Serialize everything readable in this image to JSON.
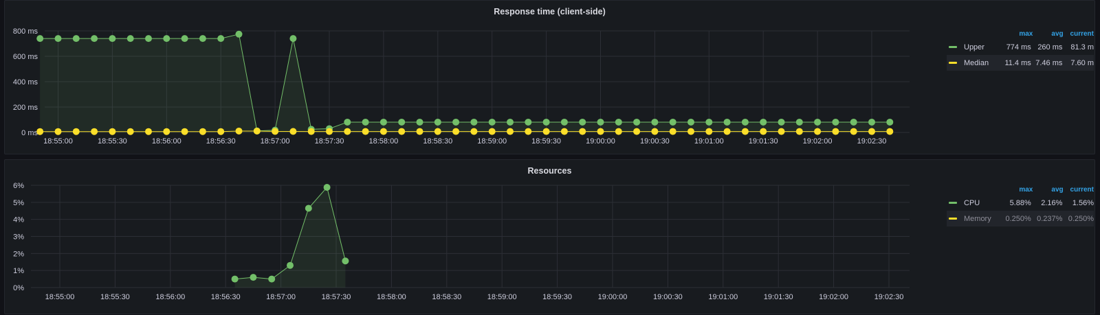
{
  "colors": {
    "green": "#73bf69",
    "yellow": "#fade2a",
    "grid": "#2c2f36",
    "legend_header": "#33a2e5"
  },
  "legend_headers": {
    "max": "max",
    "avg": "avg",
    "current": "current"
  },
  "panels": [
    {
      "title": "Response time (client-side)",
      "legend": [
        {
          "name": "Upper",
          "color": "#73bf69",
          "max": "774 ms",
          "avg": "260 ms",
          "current": "81.3 m"
        },
        {
          "name": "Median",
          "color": "#fade2a",
          "max": "11.4 ms",
          "avg": "7.46 ms",
          "current": "7.60 m"
        }
      ]
    },
    {
      "title": "Resources",
      "legend": [
        {
          "name": "CPU",
          "color": "#73bf69",
          "max": "5.88%",
          "avg": "2.16%",
          "current": "1.56%"
        },
        {
          "name": "Memory",
          "color": "#fade2a",
          "max": "0.250%",
          "avg": "0.237%",
          "current": "0.250%"
        }
      ]
    }
  ],
  "chart_data": [
    {
      "type": "line",
      "title": "Response time (client-side)",
      "x_unit": "seconds after 18:54:50",
      "x_range": [
        0,
        480
      ],
      "x_ticks": [
        "18:55:00",
        "18:55:30",
        "18:56:00",
        "18:56:30",
        "18:57:00",
        "18:57:30",
        "18:58:00",
        "18:58:30",
        "18:59:00",
        "18:59:30",
        "19:00:00",
        "19:00:30",
        "19:01:00",
        "19:01:30",
        "19:02:00",
        "19:02:30"
      ],
      "y_ticks": [
        "0 ms",
        "200 ms",
        "400 ms",
        "600 ms",
        "800 ms"
      ],
      "ylim": [
        0,
        800
      ],
      "grid": true,
      "legend_placement": "right",
      "series": [
        {
          "name": "Upper",
          "color": "#73bf69",
          "fill": true,
          "x": [
            0,
            10,
            20,
            30,
            40,
            50,
            60,
            70,
            80,
            90,
            100,
            110,
            120,
            130,
            140,
            150,
            160,
            170,
            180,
            190,
            200,
            210,
            220,
            230,
            240,
            250,
            260,
            270,
            280,
            290,
            300,
            310,
            320,
            330,
            340,
            350,
            360,
            370,
            380,
            390,
            400,
            410,
            420,
            430,
            440,
            450,
            460,
            470
          ],
          "values": [
            740,
            740,
            740,
            740,
            740,
            740,
            740,
            740,
            740,
            740,
            740,
            774,
            12,
            18,
            740,
            25,
            30,
            81.3,
            81.3,
            81.3,
            81.3,
            81.3,
            81.3,
            81.3,
            81.3,
            81.3,
            81.3,
            81.3,
            81.3,
            81.3,
            81.3,
            81.3,
            81.3,
            81.3,
            81.3,
            81.3,
            81.3,
            81.3,
            81.3,
            81.3,
            81.3,
            81.3,
            81.3,
            81.3,
            81.3,
            81.3,
            81.3,
            81.3
          ]
        },
        {
          "name": "Median",
          "color": "#fade2a",
          "fill": false,
          "x": [
            0,
            10,
            20,
            30,
            40,
            50,
            60,
            70,
            80,
            90,
            100,
            110,
            120,
            130,
            140,
            150,
            160,
            170,
            180,
            190,
            200,
            210,
            220,
            230,
            240,
            250,
            260,
            270,
            280,
            290,
            300,
            310,
            320,
            330,
            340,
            350,
            360,
            370,
            380,
            390,
            400,
            410,
            420,
            430,
            440,
            450,
            460,
            470
          ],
          "values": [
            7,
            7,
            7,
            7,
            7,
            7,
            7,
            7,
            7,
            7,
            7,
            11,
            11,
            8,
            8,
            7.6,
            7.6,
            7.6,
            7.6,
            7.6,
            7.6,
            7.6,
            7.6,
            7.6,
            7.6,
            7.6,
            7.6,
            7.6,
            7.6,
            7.6,
            7.6,
            7.6,
            7.6,
            7.6,
            7.6,
            7.6,
            7.6,
            7.6,
            7.6,
            7.6,
            7.6,
            7.6,
            7.6,
            7.6,
            7.6,
            7.6,
            7.6,
            7.6
          ]
        }
      ]
    },
    {
      "type": "line",
      "title": "Resources",
      "x_unit": "seconds after 18:54:50",
      "x_range": [
        0,
        480
      ],
      "x_ticks": [
        "18:55:00",
        "18:55:30",
        "18:56:00",
        "18:56:30",
        "18:57:00",
        "18:57:30",
        "18:58:00",
        "18:58:30",
        "18:59:00",
        "18:59:30",
        "19:00:00",
        "19:00:30",
        "19:01:00",
        "19:01:30",
        "19:02:00",
        "19:02:30"
      ],
      "y_ticks": [
        "0%",
        "1%",
        "2%",
        "3%",
        "4%",
        "5%",
        "6%"
      ],
      "ylim": [
        0,
        6
      ],
      "grid": true,
      "legend_placement": "right",
      "series": [
        {
          "name": "CPU",
          "color": "#73bf69",
          "fill": true,
          "x": [
            105,
            115,
            125,
            135,
            145,
            155,
            165
          ],
          "values": [
            0.5,
            0.6,
            0.5,
            1.3,
            4.65,
            5.88,
            1.56
          ]
        },
        {
          "name": "Memory",
          "color": "#fade2a",
          "fill": false,
          "x": [],
          "values": []
        }
      ]
    }
  ]
}
